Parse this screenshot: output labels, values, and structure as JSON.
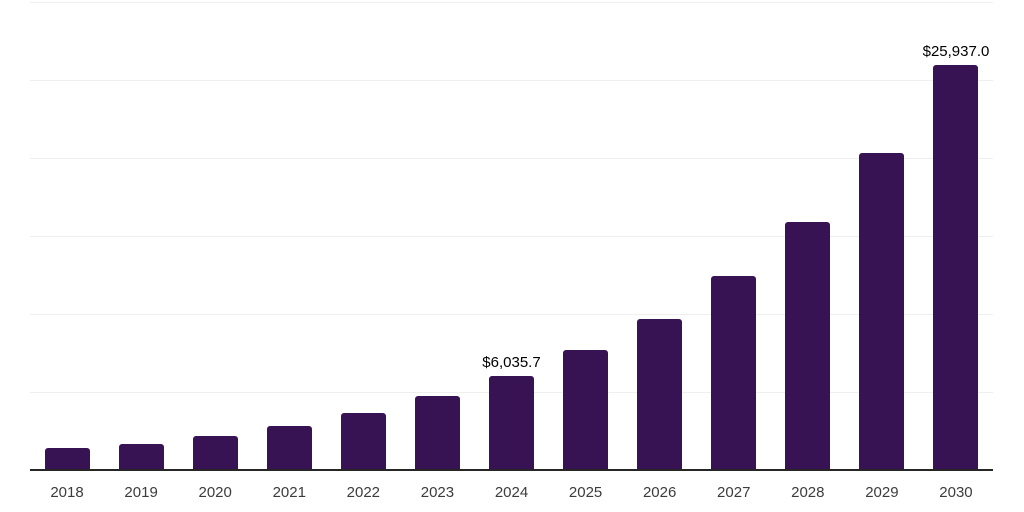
{
  "chart_data": {
    "type": "bar",
    "title": "",
    "xlabel": "",
    "ylabel": "",
    "categories": [
      "2018",
      "2019",
      "2020",
      "2021",
      "2022",
      "2023",
      "2024",
      "2025",
      "2026",
      "2027",
      "2028",
      "2029",
      "2030"
    ],
    "values": [
      1380,
      1670,
      2180,
      2820,
      3650,
      4740,
      6035.7,
      7690,
      9680,
      12440,
      15890,
      20320,
      25937.0
    ],
    "value_labels": {
      "2024": "$6,035.7",
      "2030": "$25,937.0"
    },
    "ylim": [
      0,
      30000
    ],
    "gridline_interval": 5000,
    "grid": "horizontal",
    "legend_position": "none",
    "y_axis_tick_labels": "hidden",
    "colors": {
      "bar": "#371353",
      "axis_line": "#262626",
      "gridline": "#efefef",
      "x_label": "#3c3c3c",
      "value_label": "#000000",
      "background": "#ffffff"
    }
  }
}
